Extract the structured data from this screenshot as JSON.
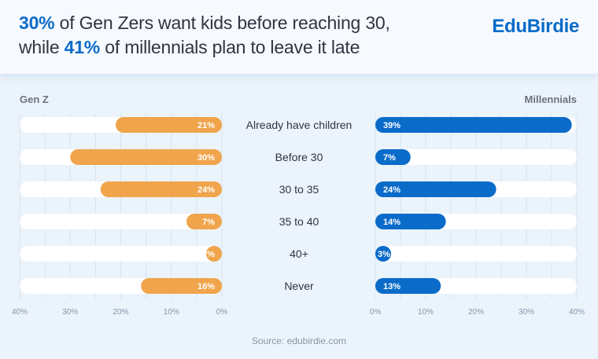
{
  "header": {
    "title_line1": {
      "highlight": "30%",
      "text": " of Gen Zers want kids before reaching 30,"
    },
    "title_line2": {
      "prefix": "while ",
      "highlight": "41%",
      "text": " of millennials plan to leave it late"
    },
    "logo": "EduBirdie"
  },
  "colors": {
    "genz": "#f0a44b",
    "millennials": "#0a6bc9",
    "track": "#ffffff",
    "grid": "#d6e4f3"
  },
  "chart_data": {
    "type": "bar",
    "orientation": "horizontal-butterfly",
    "title": "30% of Gen Zers want kids before reaching 30, while 41% of millennials plan to leave it late",
    "categories": [
      "Already have children",
      "Before 30",
      "30 to 35",
      "35 to 40",
      "40+",
      "Never"
    ],
    "series": [
      {
        "name": "Gen Z",
        "side": "left",
        "values": [
          21,
          30,
          24,
          7,
          2,
          16
        ],
        "labels": [
          "21%",
          "30%",
          "24%",
          "7%",
          "2%",
          "16%"
        ]
      },
      {
        "name": "Millennials",
        "side": "right",
        "values": [
          39,
          7,
          24,
          14,
          3,
          13
        ],
        "labels": [
          "39%",
          "7%",
          "24%",
          "14%",
          "3%",
          "13%"
        ]
      }
    ],
    "xlim": [
      0,
      40
    ],
    "left_ticks": [
      "40%",
      "30%",
      "20%",
      "10%",
      "0%"
    ],
    "right_ticks": [
      "0%",
      "10%",
      "20%",
      "30%",
      "40%"
    ],
    "grid": true,
    "grid_step": 5
  },
  "footer": {
    "source": "Source: edubirdie.com"
  }
}
